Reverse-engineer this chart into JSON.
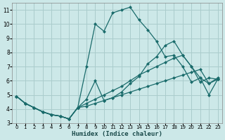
{
  "xlabel": "Humidex (Indice chaleur)",
  "bg_color": "#cce8e8",
  "grid_color": "#aacccc",
  "line_color": "#1a6b6b",
  "xlim": [
    -0.5,
    23.5
  ],
  "ylim": [
    3,
    11.5
  ],
  "xticks": [
    0,
    1,
    2,
    3,
    4,
    5,
    6,
    7,
    8,
    9,
    10,
    11,
    12,
    13,
    14,
    15,
    16,
    17,
    18,
    19,
    20,
    21,
    22,
    23
  ],
  "yticks": [
    3,
    4,
    5,
    6,
    7,
    8,
    9,
    10,
    11
  ],
  "line_peak_x": [
    0,
    1,
    2,
    3,
    4,
    5,
    6,
    7,
    8,
    9,
    10,
    11,
    12,
    13,
    14,
    15,
    16,
    17,
    18,
    19,
    20,
    21,
    22,
    23
  ],
  "line_peak_y": [
    4.9,
    4.4,
    4.1,
    3.8,
    3.6,
    3.5,
    3.3,
    4.1,
    7.0,
    10.0,
    9.5,
    10.8,
    11.0,
    11.2,
    10.3,
    9.6,
    8.8,
    7.7,
    7.8,
    7.0,
    5.9,
    6.2,
    5.0,
    6.1
  ],
  "line_zigzag_x": [
    0,
    1,
    2,
    3,
    4,
    5,
    6,
    7,
    8,
    9,
    10,
    11,
    12,
    13,
    14,
    15,
    16,
    17,
    18,
    19,
    20,
    21,
    22,
    23
  ],
  "line_zigzag_y": [
    4.9,
    4.4,
    4.1,
    3.8,
    3.6,
    3.5,
    3.3,
    4.1,
    4.7,
    6.0,
    4.6,
    4.8,
    5.2,
    5.8,
    6.3,
    7.2,
    7.7,
    8.5,
    8.8,
    7.8,
    7.0,
    5.9,
    6.2,
    6.1
  ],
  "line_upper_x": [
    0,
    1,
    2,
    3,
    4,
    5,
    6,
    7,
    8,
    9,
    10,
    11,
    12,
    13,
    14,
    15,
    16,
    17,
    18,
    19,
    20,
    21,
    22,
    23
  ],
  "line_upper_y": [
    4.9,
    4.4,
    4.1,
    3.8,
    3.6,
    3.5,
    3.3,
    4.1,
    4.4,
    4.7,
    5.0,
    5.3,
    5.6,
    6.0,
    6.4,
    6.7,
    7.0,
    7.3,
    7.6,
    7.8,
    7.0,
    6.2,
    5.8,
    6.2
  ],
  "line_lower_x": [
    0,
    1,
    2,
    3,
    4,
    5,
    6,
    7,
    8,
    9,
    10,
    11,
    12,
    13,
    14,
    15,
    16,
    17,
    18,
    19,
    20,
    21,
    22,
    23
  ],
  "line_lower_y": [
    4.9,
    4.4,
    4.1,
    3.8,
    3.6,
    3.5,
    3.3,
    4.1,
    4.2,
    4.4,
    4.6,
    4.8,
    5.0,
    5.2,
    5.4,
    5.6,
    5.8,
    6.0,
    6.2,
    6.4,
    6.6,
    6.8,
    5.8,
    6.1
  ]
}
